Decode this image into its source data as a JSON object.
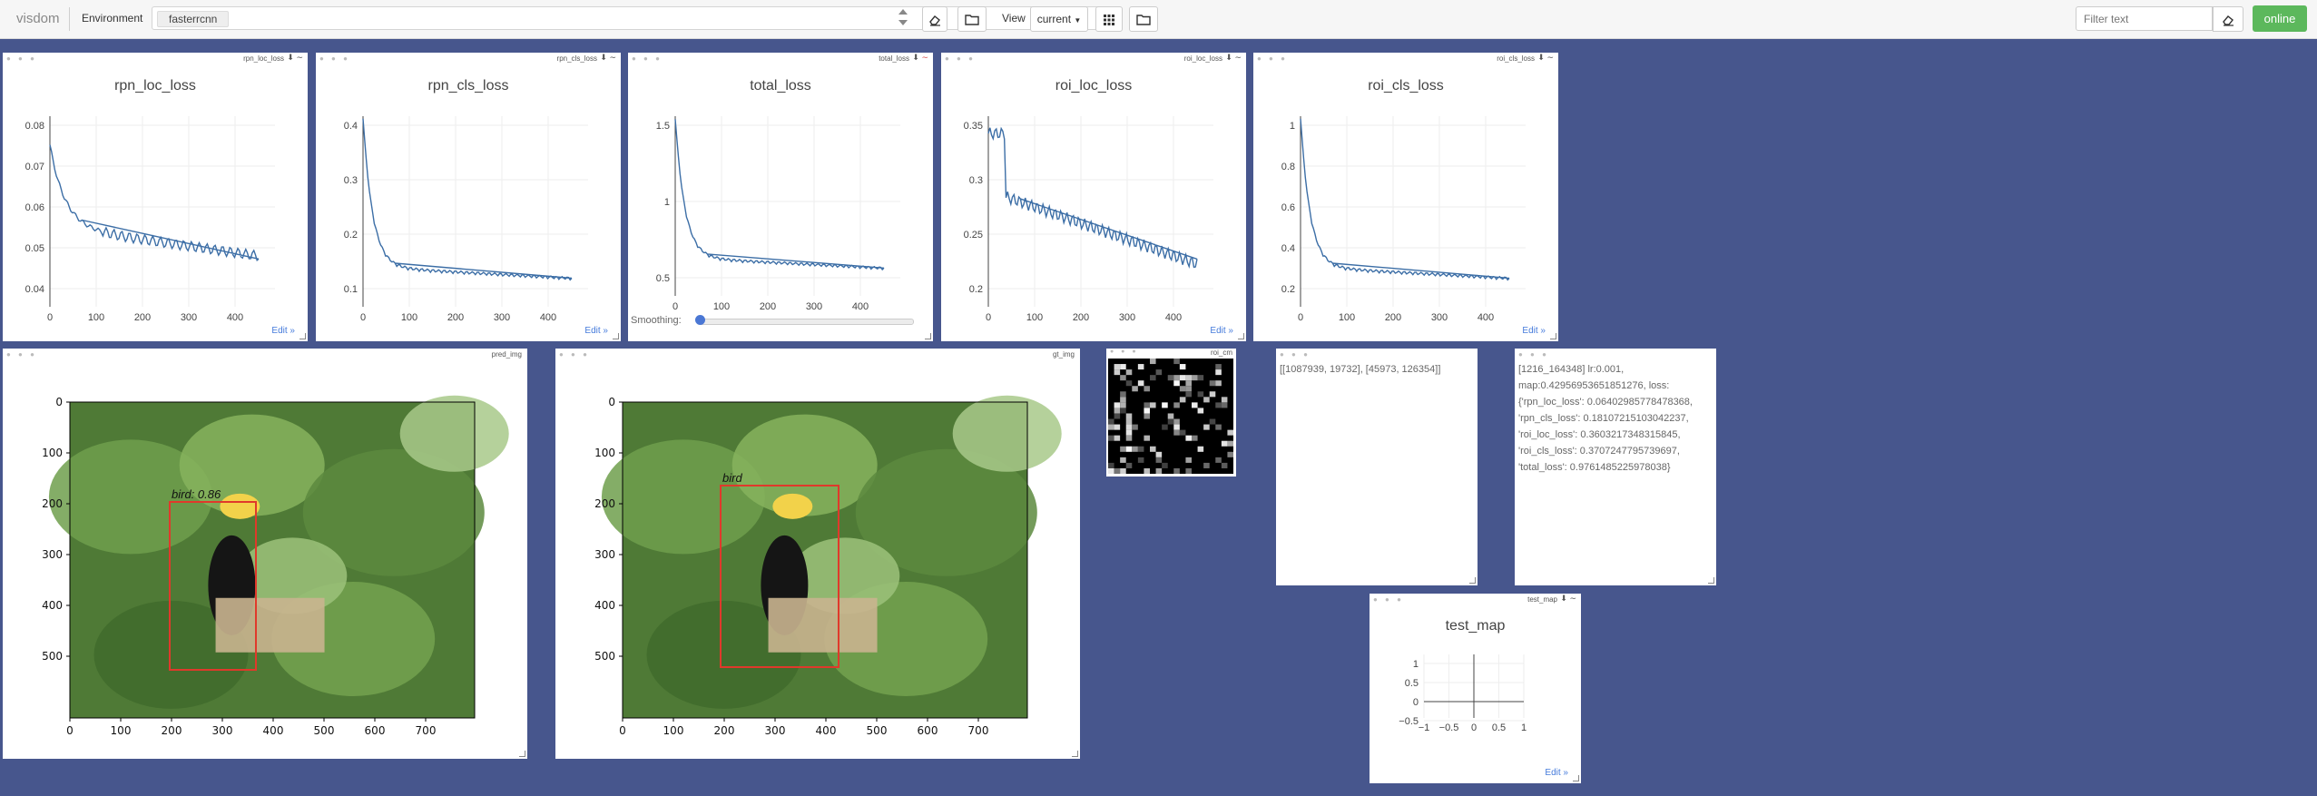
{
  "header": {
    "brand": "visdom",
    "environment_label": "Environment",
    "environment_value": "fasterrcnn",
    "view_label": "View",
    "view_value": "current",
    "filter_placeholder": "Filter text",
    "online_label": "online",
    "icons": [
      "sort-updown-icon",
      "eraser-icon",
      "folder-icon",
      "grid-icon",
      "folder-icon",
      "eraser-icon"
    ]
  },
  "windows": {
    "rpn_loc": {
      "title": "rpn_loc_loss",
      "edit": "Edit »",
      "yticks": [
        "0.08",
        "0.07",
        "0.06",
        "0.05",
        "0.04"
      ],
      "xticks": [
        "0",
        "100",
        "200",
        "300",
        "400"
      ]
    },
    "rpn_cls": {
      "title": "rpn_cls_loss",
      "edit": "Edit »",
      "yticks": [
        "0.4",
        "0.3",
        "0.2",
        "0.1"
      ],
      "xticks": [
        "0",
        "100",
        "200",
        "300",
        "400"
      ]
    },
    "total": {
      "title": "total_loss",
      "smoothing_label": "Smoothing:",
      "yticks": [
        "1.5",
        "1",
        "0.5"
      ],
      "xticks": [
        "0",
        "100",
        "200",
        "300",
        "400"
      ]
    },
    "roi_loc": {
      "title": "roi_loc_loss",
      "edit": "Edit »",
      "yticks": [
        "0.35",
        "0.3",
        "0.25",
        "0.2"
      ],
      "xticks": [
        "0",
        "100",
        "200",
        "300",
        "400"
      ]
    },
    "roi_cls": {
      "title": "roi_cls_loss",
      "edit": "Edit »",
      "yticks": [
        "1",
        "0.8",
        "0.6",
        "0.4",
        "0.2"
      ],
      "xticks": [
        "0",
        "100",
        "200",
        "300",
        "400"
      ]
    },
    "pred_img": {
      "title": "pred_img",
      "label": "bird: 0.86",
      "yticks": [
        "0",
        "100",
        "200",
        "300",
        "400",
        "500"
      ],
      "xticks": [
        "0",
        "100",
        "200",
        "300",
        "400",
        "500",
        "600",
        "700"
      ]
    },
    "gt_img": {
      "title": "gt_img",
      "label": "bird",
      "yticks": [
        "0",
        "100",
        "200",
        "300",
        "400",
        "500"
      ],
      "xticks": [
        "0",
        "100",
        "200",
        "300",
        "400",
        "500",
        "600",
        "700"
      ]
    },
    "roi_cm": {
      "title": "roi_cm"
    },
    "text1": {
      "content": "[[1087939, 19732], [45973, 126354]]"
    },
    "text2": {
      "content": "[1216_164348] lr:0.001, map:0.42956953651851276, loss:{'rpn_loc_loss': 0.06402985778478368, 'rpn_cls_loss': 0.18107215103042237, 'roi_loc_loss': 0.3603217348315845, 'roi_cls_loss': 0.3707247795739697, 'total_loss': 0.9761485225978038}"
    },
    "test_map": {
      "title": "test_map",
      "edit": "Edit »",
      "yticks": [
        "1",
        "0.5",
        "0",
        "−0.5"
      ],
      "xticks": [
        "−1",
        "−0.5",
        "0",
        "0.5",
        "1"
      ]
    }
  },
  "colors": {
    "background": "#47568d",
    "line": "#3c6ea6",
    "accent": "#447adb",
    "online": "#5cb85c"
  }
}
